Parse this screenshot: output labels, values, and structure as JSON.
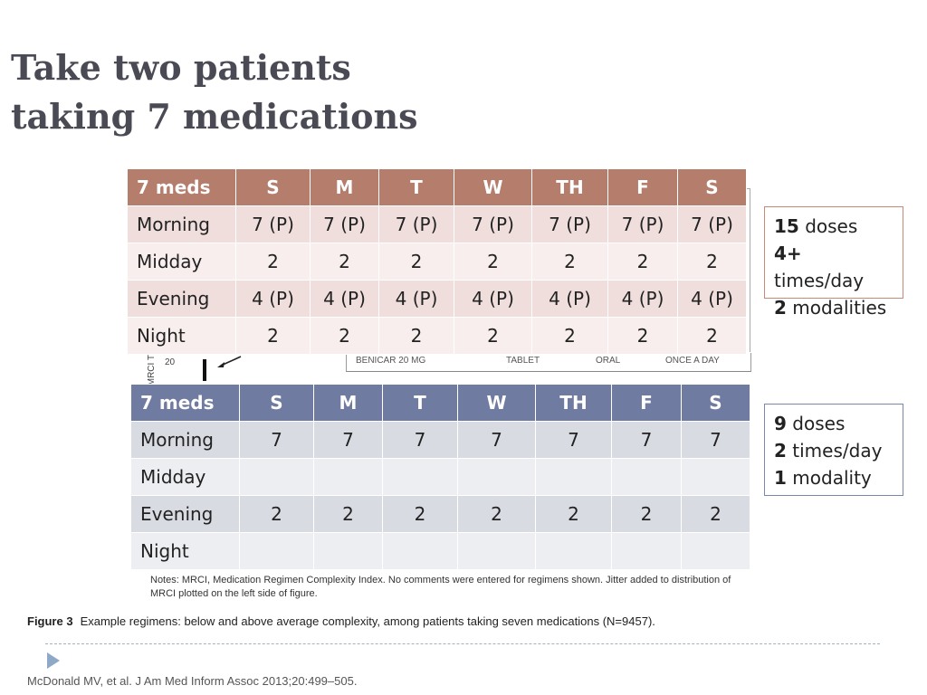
{
  "title": {
    "line1": "Take two patients",
    "line2": "taking 7 medications"
  },
  "table_a": {
    "header": [
      "7 meds",
      "S",
      "M",
      "T",
      "W",
      "TH",
      "F",
      "S"
    ],
    "rows": [
      [
        "Morning",
        "7 (P)",
        "7 (P)",
        "7 (P)",
        "7 (P)",
        "7 (P)",
        "7 (P)",
        "7 (P)"
      ],
      [
        "Midday",
        "2",
        "2",
        "2",
        "2",
        "2",
        "2",
        "2"
      ],
      [
        "Evening",
        "4 (P)",
        "4 (P)",
        "4 (P)",
        "4 (P)",
        "4 (P)",
        "4 (P)",
        "4 (P)"
      ],
      [
        "Night",
        "2",
        "2",
        "2",
        "2",
        "2",
        "2",
        "2"
      ]
    ],
    "header_color": "#b47d6c"
  },
  "summary_a": {
    "doses_num": "15",
    "doses_label": "doses",
    "times_num": "4+",
    "times_label": "times/day",
    "modality_num": "2",
    "modality_label": "modalities"
  },
  "table_b": {
    "header": [
      "7 meds",
      "S",
      "M",
      "T",
      "W",
      "TH",
      "F",
      "S"
    ],
    "rows": [
      [
        "Morning",
        "7",
        "7",
        "7",
        "7",
        "7",
        "7",
        "7"
      ],
      [
        "Midday",
        "",
        "",
        "",
        "",
        "",
        "",
        ""
      ],
      [
        "Evening",
        "2",
        "2",
        "2",
        "2",
        "2",
        "2",
        "2"
      ],
      [
        "Night",
        "",
        "",
        "",
        "",
        "",
        "",
        ""
      ]
    ],
    "header_color": "#6f7ba0"
  },
  "summary_b": {
    "doses_num": "9",
    "doses_label": "doses",
    "times_num": "2",
    "times_label": "times/day",
    "modality_num": "1",
    "modality_label": "modality"
  },
  "figure_fragment": {
    "drug": "BENICAR 20 MG",
    "form": "TABLET",
    "route": "ORAL",
    "frequency": "ONCE A DAY",
    "axis_label": "MRCI T",
    "axis_tick": "20"
  },
  "notes": "Notes: MRCI, Medication Regimen Complexity Index. No comments were entered for regimens shown. Jitter added to distribution of MRCI plotted on the left side of figure.",
  "caption": {
    "label": "Figure 3",
    "text": "Example regimens: below and above average complexity, among patients taking seven medications (N=9457)."
  },
  "citation": "McDonald MV, et al. J Am Med Inform Assoc 2013;20:499–505.",
  "icons": {
    "bullet": "triangle-bullet-icon",
    "arrow": "arrow-icon"
  }
}
